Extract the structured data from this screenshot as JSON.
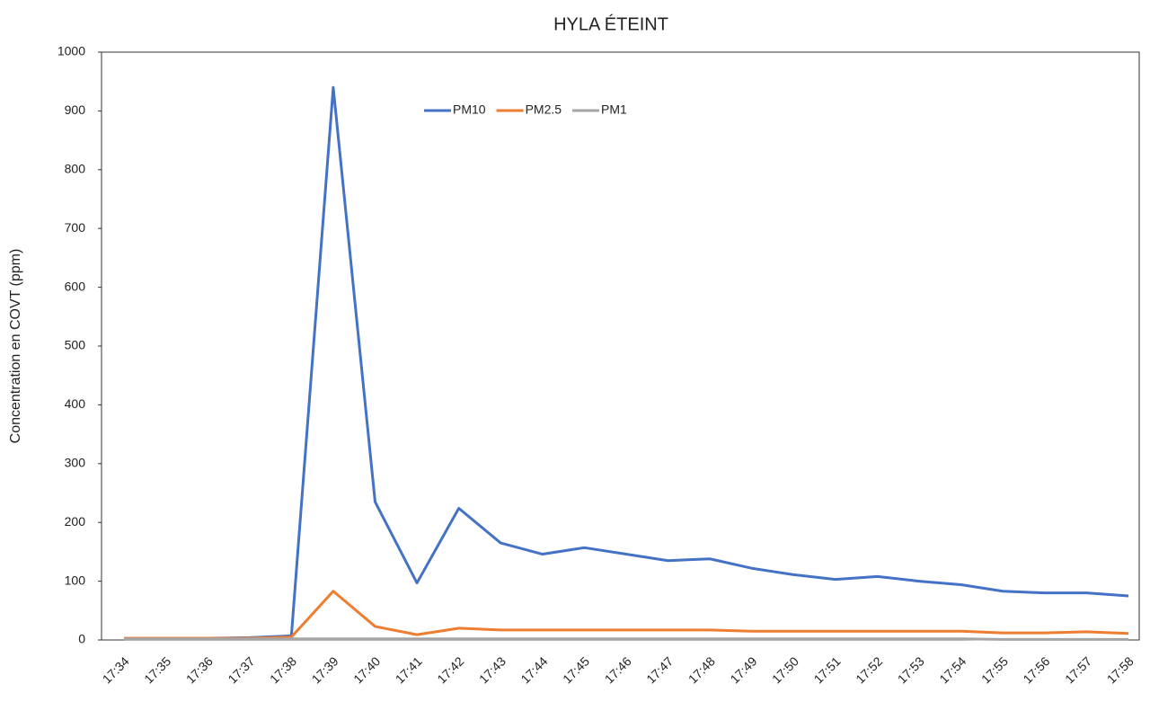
{
  "chart_data": {
    "type": "line",
    "title": "HYLA ÉTEINT",
    "y_label": "Concentration en COVT (ppm)",
    "categories": [
      "17:34",
      "17:35",
      "17:36",
      "17:37",
      "17:38",
      "17:39",
      "17:40",
      "17:41",
      "17:42",
      "17:43",
      "17:44",
      "17:45",
      "17:46",
      "17:47",
      "17:48",
      "17:49",
      "17:50",
      "17:51",
      "17:52",
      "17:53",
      "17:54",
      "17:55",
      "17:56",
      "17:57",
      "17:58"
    ],
    "series": [
      {
        "name": "PM10",
        "color": "#4472c4",
        "values": [
          3,
          3,
          3,
          4,
          7,
          940,
          235,
          97,
          224,
          165,
          146,
          157,
          146,
          135,
          138,
          122,
          111,
          103,
          108,
          100,
          94,
          83,
          80,
          80,
          75
        ]
      },
      {
        "name": "PM2.5",
        "color": "#ed7d31",
        "values": [
          3,
          3,
          3,
          3,
          5,
          83,
          23,
          9,
          20,
          17,
          17,
          17,
          17,
          17,
          17,
          15,
          15,
          15,
          15,
          15,
          15,
          12,
          12,
          14,
          11
        ]
      },
      {
        "name": "PM1",
        "color": "#a5a5a5",
        "values": [
          2,
          2,
          2,
          2,
          2,
          2,
          2,
          2,
          2,
          2,
          2,
          2,
          2,
          2,
          2,
          2,
          2,
          2,
          2,
          2,
          2,
          1,
          1,
          1,
          1
        ]
      }
    ],
    "ylim": [
      0,
      1000
    ],
    "yticks": [
      0,
      100,
      200,
      300,
      400,
      500,
      600,
      700,
      800,
      900,
      1000
    ],
    "grid": false,
    "legend": "top"
  }
}
